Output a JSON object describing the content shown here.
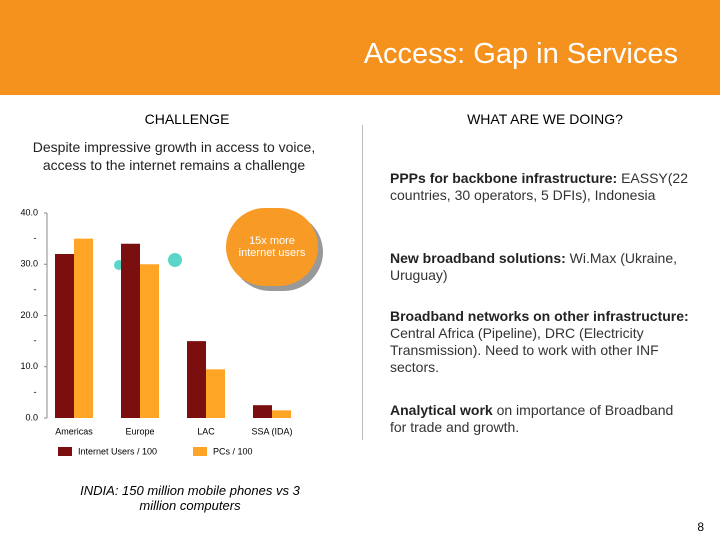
{
  "header": {
    "title": "Access: Gap in Services"
  },
  "left": {
    "heading": "CHALLENGE",
    "description": "Despite impressive growth in access to voice, access to the internet remains a challenge",
    "footnote": "INDIA: 150 million mobile phones vs 3 million computers"
  },
  "chart_data": {
    "type": "bar",
    "categories": [
      "Americas",
      "Europe",
      "LAC",
      "SSA (IDA)"
    ],
    "series": [
      {
        "name": "Internet Users / 100",
        "color": "#7b0e0e",
        "values": [
          32,
          34,
          15,
          2.5
        ]
      },
      {
        "name": "PCs / 100",
        "color": "#ffa526",
        "values": [
          35,
          30,
          9.5,
          1.5
        ]
      }
    ],
    "ylim": [
      0,
      40
    ],
    "yticks": [
      {
        "value": 0,
        "label": "0.0"
      },
      {
        "value": 10,
        "label": "10.0"
      },
      {
        "value": 20,
        "label": "20.0"
      },
      {
        "value": 30,
        "label": "30.0"
      },
      {
        "value": 40,
        "label": "40.0"
      }
    ],
    "yminorticks": [
      {
        "value": 5,
        "label": "-"
      },
      {
        "value": 15,
        "label": "-"
      },
      {
        "value": 25,
        "label": "-"
      },
      {
        "value": 35,
        "label": "-"
      }
    ],
    "annotation": "15x more internet users"
  },
  "right": {
    "heading": "WHAT ARE WE DOING?",
    "items": [
      {
        "bold": "PPPs for backbone infrastructure:",
        "text": "EASSY(22 countries, 30 operators, 5 DFIs), Indonesia"
      },
      {
        "bold": "New broadband solutions:",
        "text": "Wi.Max (Ukraine, Uruguay)"
      },
      {
        "bold": "Broadband networks on other infrastructure:",
        "text": "Central Africa (Pipeline), DRC (Electricity Transmission). Need to work with other INF sectors."
      },
      {
        "bold": "Analytical work",
        "text": "on importance of Broadband for trade and growth."
      }
    ]
  },
  "footer": {
    "page": "8"
  }
}
